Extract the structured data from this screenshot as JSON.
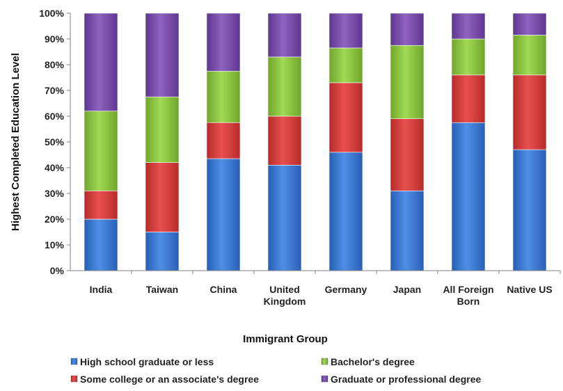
{
  "chart_data": {
    "type": "bar",
    "stacked": true,
    "xlabel": "Immigrant Group",
    "ylabel": "Highest Completed Education Level",
    "ylim": [
      0,
      100
    ],
    "yticks": [
      "0%",
      "10%",
      "20%",
      "30%",
      "40%",
      "50%",
      "60%",
      "70%",
      "80%",
      "90%",
      "100%"
    ],
    "categories": [
      [
        "India"
      ],
      [
        "Taiwan"
      ],
      [
        "China"
      ],
      [
        "United",
        "Kingdom"
      ],
      [
        "Germany"
      ],
      [
        "Japan"
      ],
      [
        "All Foreign",
        "Born"
      ],
      [
        "Native US"
      ]
    ],
    "series": [
      {
        "name": "High school graduate or less",
        "color": "#3a78d4",
        "values": [
          20,
          15,
          43.5,
          41,
          46,
          31,
          57.5,
          47
        ]
      },
      {
        "name": "Some college or an associate's degree",
        "color": "#d63a3a",
        "values": [
          11,
          27,
          14,
          19,
          27,
          28,
          18.5,
          29
        ]
      },
      {
        "name": "Bachelor's degree",
        "color": "#8cc63f",
        "values": [
          31,
          25.5,
          20,
          23,
          13.5,
          28.5,
          14,
          15.5
        ]
      },
      {
        "name": "Graduate or professional degree",
        "color": "#7a4ea8",
        "values": [
          38,
          32.5,
          22.5,
          17,
          13.5,
          12.5,
          10,
          8.5
        ]
      }
    ],
    "legend": "bottom",
    "grid": false
  }
}
